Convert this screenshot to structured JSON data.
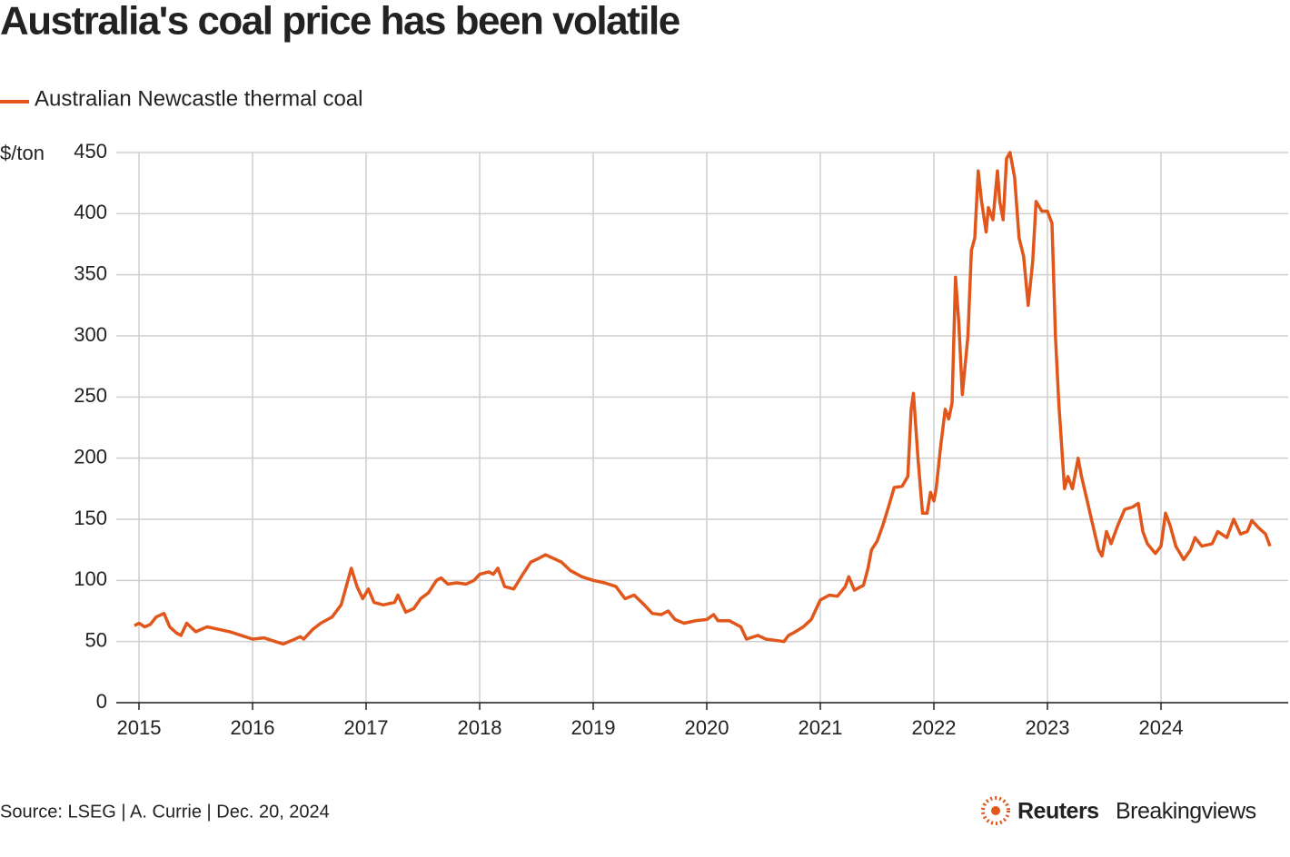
{
  "chart_data": {
    "type": "line",
    "title": "Australia's coal price has been volatile",
    "y_unit": "$/ton",
    "source": "Source: LSEG | A. Currie | Dec. 20, 2024",
    "brand": [
      "Reuters",
      "Breakingviews"
    ],
    "xlim": [
      2014.8,
      2025.12
    ],
    "xticks": [
      2015,
      2016,
      2017,
      2018,
      2019,
      2020,
      2021,
      2022,
      2023,
      2024
    ],
    "ylim": [
      0,
      450
    ],
    "yticks": [
      0,
      50,
      100,
      150,
      200,
      250,
      300,
      350,
      400,
      450
    ],
    "grid": true,
    "x": [
      2014.96,
      2015.0,
      2015.05,
      2015.1,
      2015.15,
      2015.22,
      2015.27,
      2015.33,
      2015.37,
      2015.42,
      2015.5,
      2015.6,
      2015.7,
      2015.8,
      2015.9,
      2016.0,
      2016.1,
      2016.2,
      2016.27,
      2016.35,
      2016.42,
      2016.45,
      2016.53,
      2016.6,
      2016.7,
      2016.78,
      2016.84,
      2016.87,
      2016.92,
      2016.97,
      2017.02,
      2017.07,
      2017.15,
      2017.25,
      2017.28,
      2017.35,
      2017.42,
      2017.48,
      2017.55,
      2017.62,
      2017.66,
      2017.72,
      2017.8,
      2017.88,
      2017.95,
      2018.0,
      2018.08,
      2018.12,
      2018.16,
      2018.22,
      2018.3,
      2018.38,
      2018.45,
      2018.52,
      2018.58,
      2018.65,
      2018.72,
      2018.8,
      2018.9,
      2019.0,
      2019.1,
      2019.2,
      2019.28,
      2019.36,
      2019.45,
      2019.52,
      2019.6,
      2019.66,
      2019.72,
      2019.8,
      2019.9,
      2020.0,
      2020.06,
      2020.1,
      2020.2,
      2020.3,
      2020.35,
      2020.45,
      2020.52,
      2020.6,
      2020.68,
      2020.72,
      2020.78,
      2020.85,
      2020.92,
      2021.0,
      2021.08,
      2021.15,
      2021.22,
      2021.25,
      2021.3,
      2021.38,
      2021.42,
      2021.45,
      2021.5,
      2021.55,
      2021.6,
      2021.65,
      2021.72,
      2021.77,
      2021.8,
      2021.82,
      2021.86,
      2021.9,
      2021.94,
      2021.97,
      2022.0,
      2022.02,
      2022.06,
      2022.1,
      2022.13,
      2022.16,
      2022.19,
      2022.22,
      2022.25,
      2022.3,
      2022.33,
      2022.36,
      2022.39,
      2022.42,
      2022.46,
      2022.48,
      2022.52,
      2022.56,
      2022.58,
      2022.61,
      2022.64,
      2022.67,
      2022.71,
      2022.75,
      2022.79,
      2022.83,
      2022.87,
      2022.9,
      2022.95,
      2023.0,
      2023.04,
      2023.07,
      2023.1,
      2023.15,
      2023.18,
      2023.22,
      2023.27,
      2023.3,
      2023.35,
      2023.4,
      2023.45,
      2023.48,
      2023.52,
      2023.56,
      2023.62,
      2023.68,
      2023.75,
      2023.8,
      2023.84,
      2023.88,
      2023.95,
      2024.0,
      2024.04,
      2024.08,
      2024.13,
      2024.2,
      2024.26,
      2024.3,
      2024.36,
      2024.45,
      2024.5,
      2024.58,
      2024.64,
      2024.7,
      2024.76,
      2024.8,
      2024.86,
      2024.92,
      2024.96
    ],
    "series": [
      {
        "name": "Australian Newcastle thermal coal",
        "color": "#e0561b",
        "values": [
          63,
          65,
          62,
          64,
          70,
          73,
          62,
          57,
          55,
          65,
          58,
          62,
          60,
          58,
          55,
          52,
          53,
          50,
          48,
          51,
          54,
          52,
          60,
          65,
          70,
          80,
          100,
          110,
          95,
          85,
          93,
          82,
          80,
          82,
          88,
          74,
          77,
          85,
          90,
          100,
          102,
          97,
          98,
          97,
          100,
          105,
          107,
          105,
          110,
          95,
          93,
          105,
          115,
          118,
          121,
          118,
          115,
          108,
          103,
          100,
          98,
          95,
          85,
          88,
          80,
          73,
          72,
          75,
          68,
          65,
          67,
          68,
          72,
          67,
          67,
          62,
          52,
          55,
          52,
          51,
          50,
          55,
          58,
          62,
          68,
          84,
          88,
          87,
          95,
          103,
          92,
          96,
          110,
          125,
          132,
          145,
          160,
          176,
          177,
          185,
          240,
          253,
          200,
          155,
          155,
          172,
          165,
          175,
          210,
          240,
          232,
          245,
          348,
          310,
          252,
          300,
          370,
          380,
          435,
          410,
          385,
          405,
          395,
          435,
          410,
          395,
          445,
          450,
          430,
          380,
          365,
          325,
          360,
          410,
          402,
          402,
          392,
          300,
          245,
          175,
          185,
          175,
          200,
          185,
          165,
          145,
          125,
          120,
          140,
          130,
          145,
          158,
          160,
          163,
          140,
          130,
          122,
          128,
          155,
          145,
          128,
          117,
          125,
          135,
          128,
          130,
          140,
          135,
          150,
          138,
          140,
          149,
          143,
          138,
          128
        ]
      }
    ]
  }
}
